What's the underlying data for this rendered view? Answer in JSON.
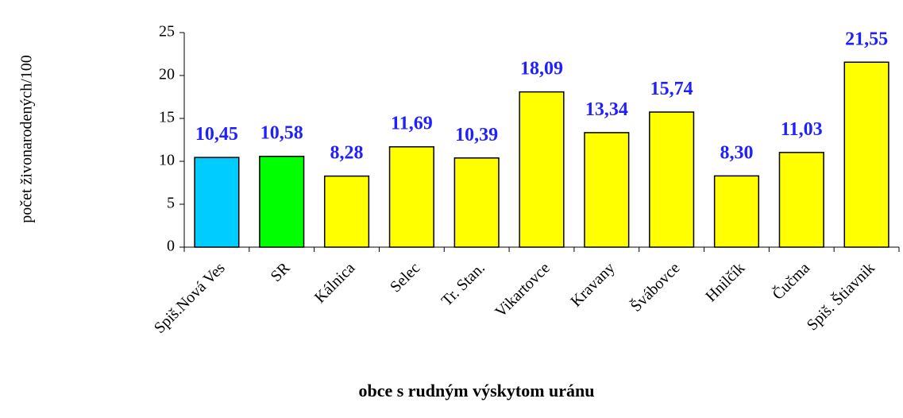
{
  "chart_data": {
    "type": "bar",
    "categories": [
      "Spiš.Nová Ves",
      "SR",
      "Kálnica",
      "Selec",
      "Tr. Stan.",
      "Vikartovce",
      "Kravany",
      "Švábovce",
      "Hnilčík",
      "Čučma",
      "Spiš. Štiavnik"
    ],
    "values": [
      10.45,
      10.58,
      8.28,
      11.69,
      10.39,
      18.09,
      13.34,
      15.74,
      8.3,
      11.03,
      21.55
    ],
    "value_labels": [
      "10,45",
      "10,58",
      "8,28",
      "11,69",
      "10,39",
      "18,09",
      "13,34",
      "15,74",
      "8,30",
      "11,03",
      "21,55"
    ],
    "colors": [
      "#00ccff",
      "#00ff00",
      "#ffff00",
      "#ffff00",
      "#ffff00",
      "#ffff00",
      "#ffff00",
      "#ffff00",
      "#ffff00",
      "#ffff00",
      "#ffff00"
    ],
    "ylim": [
      0,
      25
    ],
    "yticks": [
      0,
      5,
      10,
      15,
      20,
      25
    ],
    "y_label": "počet živonarodených/100",
    "x_label": "obce s rudným výskytom uránu"
  }
}
